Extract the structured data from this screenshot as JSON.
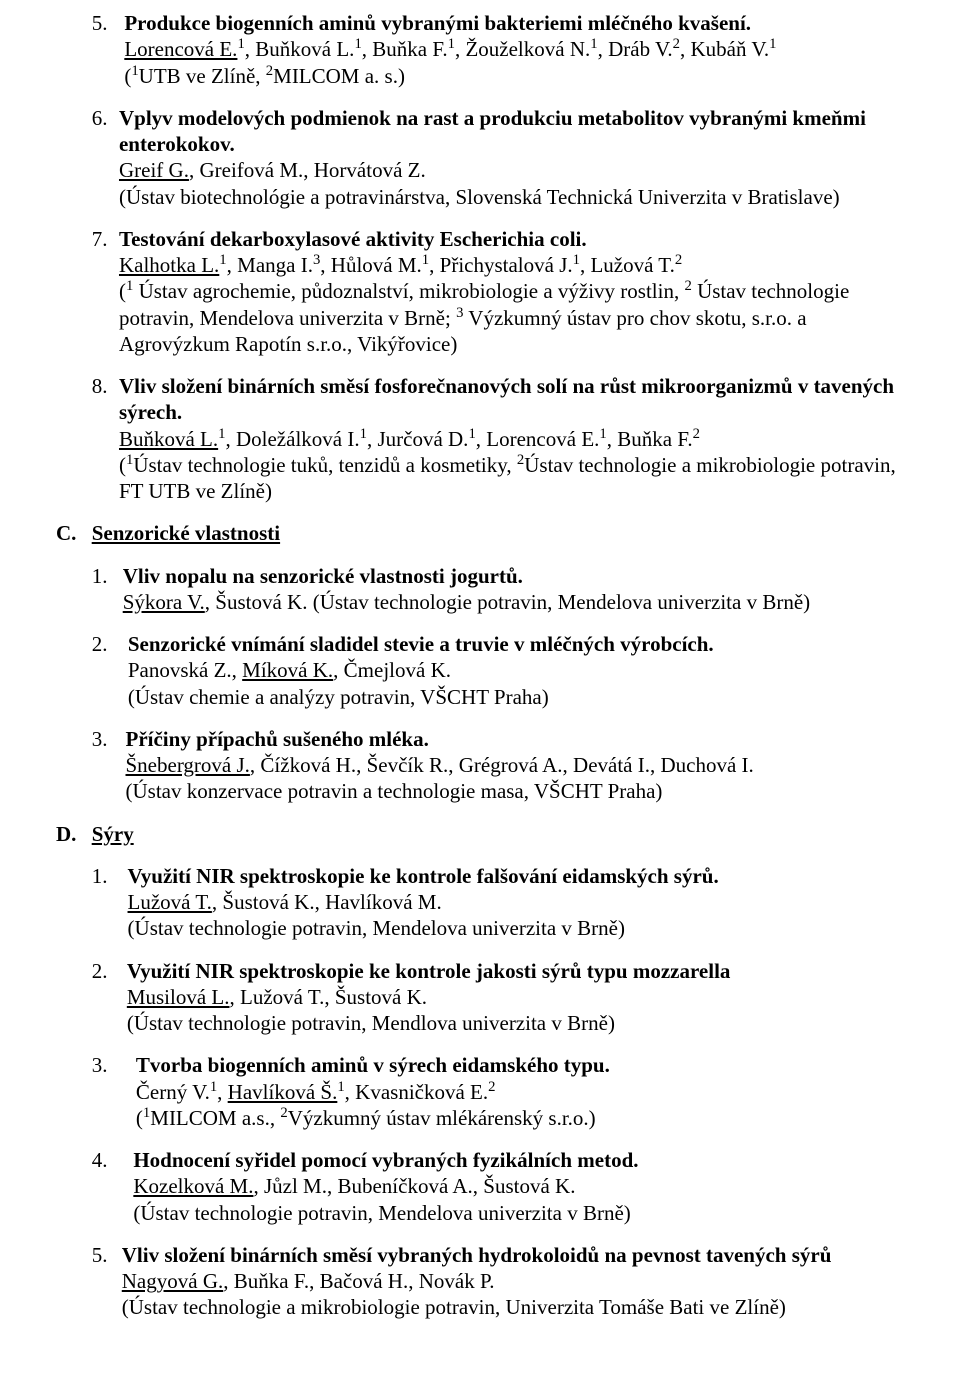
{
  "items_top": [
    {
      "num": "5.",
      "title": "Produkce biogenních aminů vybranými bakteriemi mléčného kvašení.",
      "authors_html": "<span class='u'>Lorencová E.</span><sup>1</sup>, Buňková L.<sup>1</sup>, Buňka F.<sup>1</sup>, Žouželková N.<sup>1</sup>, Dráb V.<sup>2</sup>, Kubáň V.<sup>1</sup>",
      "affil_html": "(<sup>1</sup>UTB ve Zlíně, <sup>2</sup>MILCOM a. s.)"
    },
    {
      "num": "6.",
      "title": "Vplyv modelových podmienok na rast a produkciu metabolitov vybranými kmeňmi enterokokov.",
      "authors_html": "<span class='u'>Greif G.</span>, Greifová M., Horvátová Z.",
      "affil_html": "(Ústav biotechnológie a potravinárstva, Slovenská Technická Univerzita v Bratislave)"
    },
    {
      "num": "7.",
      "title": "Testování dekarboxylasové aktivity Escherichia coli.",
      "authors_html": "<span class='u'>Kalhotka L.</span><sup>1</sup>, Manga I.<sup>3</sup>, Hůlová M.<sup>1</sup>, Přichystalová J.<sup>1</sup>, Lužová T.<sup>2</sup>",
      "affil_html": "(<sup>1</sup> Ústav agrochemie, půdoznalství, mikrobiologie a výživy rostlin, <sup>2</sup> Ústav technologie potravin, Mendelova univerzita v Brně; <sup>3</sup> Výzkumný ústav pro chov skotu, s.r.o. a Agrovýzkum Rapotín s.r.o., Vikýřovice)"
    },
    {
      "num": "8.",
      "title": "Vliv složení binárních směsí fosforečnanových solí na růst mikroorganizmů v tavených sýrech.",
      "authors_html": "<span class='u'>Buňková L.</span><sup>1</sup>, Doležálková I.<sup>1</sup>, Jurčová D.<sup>1</sup>, Lorencová E.<sup>1</sup>, Buňka F.<sup>2</sup>",
      "affil_html": "(<sup>1</sup>Ústav technologie tuků, tenzidů a kosmetiky, <sup>2</sup>Ústav technologie a mikrobiologie potravin, FT UTB ve Zlíně)"
    }
  ],
  "section_c": {
    "letter": "C.",
    "title": "Senzorické vlastnosti",
    "items": [
      {
        "num": "1.",
        "title": "Vliv nopalu na senzorické vlastnosti jogurtů.",
        "authors_html": "<span class='u'>Sýkora V.</span>, Šustová K. (Ústav technologie potravin, Mendelova univerzita v Brně)",
        "affil_html": ""
      },
      {
        "num": "2.",
        "title": "Senzorické vnímání sladidel stevie a truvie v mléčných výrobcích.",
        "authors_html": "Panovská Z., <span class='u'>Míková K.</span>, Čmejlová K.",
        "affil_html": "(Ústav chemie a analýzy potravin, VŠCHT Praha)"
      },
      {
        "num": "3.",
        "title": "Příčiny přípachů sušeného mléka.",
        "authors_html": "<span class='u'>Šnebergrová J.</span>, Čížková H., Ševčík R., Grégrová A., Devátá I., Duchová I.",
        "affil_html": "(Ústav konzervace potravin a technologie masa, VŠCHT Praha)"
      }
    ]
  },
  "section_d": {
    "letter": "D.",
    "title": "Sýry",
    "items": [
      {
        "num": "1.",
        "title": "Využití NIR spektroskopie ke kontrole falšování eidamských sýrů.",
        "authors_html": "<span class='u'>Lužová T.</span>, Šustová K., Havlíková M.",
        "affil_html": "(Ústav technologie potravin, Mendelova univerzita v Brně)"
      },
      {
        "num": "2.",
        "title": "Využití NIR spektroskopie ke kontrole jakosti sýrů typu mozzarella",
        "authors_html": "<span class='u'>Musilová L.</span>, Lužová T., Šustová K.",
        "affil_html": "(Ústav technologie potravin, Mendlova univerzita v Brně)"
      },
      {
        "num": "3.",
        "title": "Tvorba biogenních aminů v sýrech eidamského typu.",
        "authors_html": "Černý V.<sup>1</sup>, <span class='u'>Havlíková Š.</span><sup>1</sup>, Kvasničková E.<sup>2</sup>",
        "affil_html": "(<sup>1</sup>MILCOM a.s., <sup>2</sup>Výzkumný ústav mlékárenský s.r.o.)"
      },
      {
        "num": "4.",
        "title": "Hodnocení syřidel pomocí vybraných fyzikálních metod.",
        "authors_html": "<span class='u'>Kozelková M.</span>, Jůzl M., Bubeníčková A., Šustová K.",
        "affil_html": "(Ústav technologie potravin, Mendelova univerzita v Brně)"
      },
      {
        "num": "5.",
        "title": "Vliv složení binárních směsí vybraných hydrokoloidů na pevnost tavených sýrů",
        "authors_html": "<span class='u'>Nagyová G.</span>, Buňka F., Bačová H., Novák P.",
        "affil_html": "(Ústav technologie a mikrobiologie potravin, Univerzita Tomáše Bati ve Zlíně)"
      }
    ]
  }
}
